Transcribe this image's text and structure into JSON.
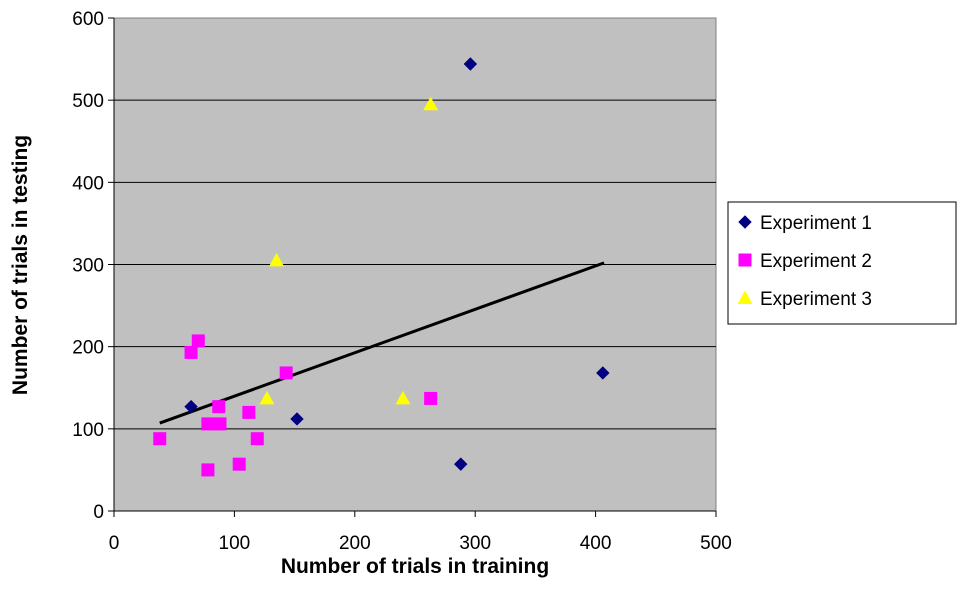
{
  "chart_data": {
    "type": "scatter",
    "xlabel": "Number of trials in training",
    "ylabel": "Number of trials in testing",
    "xlim": [
      0,
      500
    ],
    "ylim": [
      0,
      600
    ],
    "x_ticks": [
      0,
      100,
      200,
      300,
      400,
      500
    ],
    "y_ticks": [
      0,
      100,
      200,
      300,
      400,
      500,
      600
    ],
    "grid": "horizontal",
    "plot_background": "#c0c0c0",
    "legend_position": "right",
    "series": [
      {
        "name": "Experiment 1",
        "marker": "diamond",
        "color": "#000080",
        "points": [
          [
            64,
            127
          ],
          [
            152,
            112
          ],
          [
            288,
            57
          ],
          [
            296,
            544
          ],
          [
            406,
            168
          ]
        ]
      },
      {
        "name": "Experiment 2",
        "marker": "square",
        "color": "#ff00ff",
        "points": [
          [
            38,
            88
          ],
          [
            64,
            193
          ],
          [
            70,
            207
          ],
          [
            78,
            106
          ],
          [
            78,
            50
          ],
          [
            87,
            127
          ],
          [
            88,
            106
          ],
          [
            104,
            57
          ],
          [
            112,
            120
          ],
          [
            119,
            88
          ],
          [
            143,
            168
          ],
          [
            263,
            137
          ]
        ]
      },
      {
        "name": "Experiment 3",
        "marker": "triangle",
        "color": "#ffff00",
        "points": [
          [
            127,
            137
          ],
          [
            135,
            305
          ],
          [
            240,
            137
          ],
          [
            263,
            495
          ]
        ]
      }
    ],
    "trendline": {
      "color": "#000000",
      "points": [
        [
          38,
          107
        ],
        [
          407,
          302
        ]
      ]
    }
  }
}
